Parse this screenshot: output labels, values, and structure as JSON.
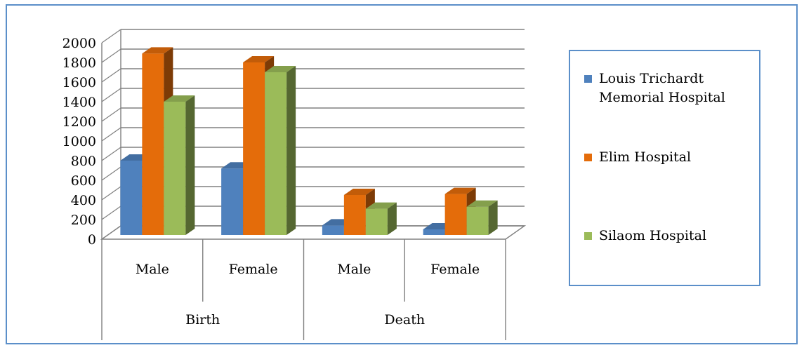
{
  "chart_data": {
    "type": "bar",
    "categories": [
      "Male",
      "Female",
      "Male",
      "Female"
    ],
    "groups": [
      {
        "label": "Birth",
        "categories": [
          "Male",
          "Female"
        ]
      },
      {
        "label": "Death",
        "categories": [
          "Male",
          "Female"
        ]
      }
    ],
    "series": [
      {
        "name": "Louis Trichardt Memorial Hospital",
        "values": [
          800,
          720,
          140,
          100
        ],
        "color": "#4f81bd"
      },
      {
        "name": "Elim Hospital",
        "values": [
          1890,
          1800,
          450,
          460
        ],
        "color": "#e46c0a"
      },
      {
        "name": "Silaom Hospital",
        "values": [
          1400,
          1700,
          310,
          330
        ],
        "color": "#9bbb59"
      }
    ],
    "yticks": [
      "0",
      "200",
      "400",
      "600",
      "800",
      "1000",
      "1200",
      "1400",
      "1600",
      "1800",
      "2000"
    ],
    "ylim": [
      0,
      2000
    ],
    "title": "",
    "xlabel": "",
    "ylabel": "",
    "grid": true,
    "legend": "right",
    "style": "3d-clustered-column"
  }
}
